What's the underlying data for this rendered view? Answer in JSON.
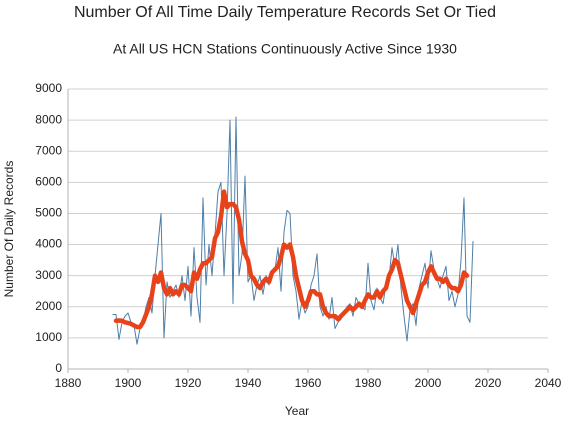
{
  "chart_data": {
    "type": "line",
    "title": "Number Of All Time Daily Temperature Records Set Or Tied",
    "subtitle": "At All US HCN Stations Continuously Active Since 1930",
    "xlabel": "Year",
    "ylabel": "Number Of Daily Records",
    "xlim": [
      1880,
      2040
    ],
    "xticks": [
      1880,
      1900,
      1920,
      1940,
      1960,
      1980,
      2000,
      2020,
      2040
    ],
    "ylim": [
      0,
      9000
    ],
    "yticks": [
      0,
      1000,
      2000,
      3000,
      4000,
      5000,
      6000,
      7000,
      8000,
      9000
    ],
    "grid": true,
    "series": [
      {
        "color": "#4f7fa8",
        "width": 1,
        "x": [
          1895,
          1896,
          1897,
          1898,
          1899,
          1900,
          1901,
          1902,
          1903,
          1904,
          1905,
          1906,
          1907,
          1908,
          1909,
          1910,
          1911,
          1912,
          1913,
          1914,
          1915,
          1916,
          1917,
          1918,
          1919,
          1920,
          1921,
          1922,
          1923,
          1924,
          1925,
          1926,
          1927,
          1928,
          1929,
          1930,
          1931,
          1932,
          1933,
          1934,
          1935,
          1936,
          1937,
          1938,
          1939,
          1940,
          1941,
          1942,
          1943,
          1944,
          1945,
          1946,
          1947,
          1948,
          1949,
          1950,
          1951,
          1952,
          1953,
          1954,
          1955,
          1956,
          1957,
          1958,
          1959,
          1960,
          1961,
          1962,
          1963,
          1964,
          1965,
          1966,
          1967,
          1968,
          1969,
          1970,
          1971,
          1972,
          1973,
          1974,
          1975,
          1976,
          1977,
          1978,
          1979,
          1980,
          1981,
          1982,
          1983,
          1984,
          1985,
          1986,
          1987,
          1988,
          1989,
          1990,
          1991,
          1992,
          1993,
          1994,
          1995,
          1996,
          1997,
          1998,
          1999,
          2000,
          2001,
          2002,
          2003,
          2004,
          2005,
          2006,
          2007,
          2008,
          2009,
          2010,
          2011,
          2012,
          2013,
          2014,
          2015
        ],
        "values": [
          1750,
          1750,
          950,
          1500,
          1700,
          1800,
          1500,
          1400,
          800,
          1300,
          1500,
          2000,
          2300,
          1800,
          3000,
          4000,
          5000,
          1000,
          2800,
          2300,
          2500,
          2700,
          2300,
          3000,
          2200,
          3300,
          1700,
          3900,
          2300,
          1500,
          5500,
          2700,
          4000,
          3000,
          4300,
          5700,
          6000,
          3000,
          5000,
          8000,
          2100,
          8100,
          3000,
          3700,
          6200,
          2800,
          3000,
          2200,
          2700,
          3000,
          2400,
          3000,
          2700,
          3100,
          3200,
          3900,
          2500,
          4400,
          5100,
          5000,
          3000,
          2500,
          1600,
          2200,
          1800,
          2000,
          2700,
          3000,
          3700,
          2000,
          1700,
          2000,
          1600,
          2300,
          1300,
          1500,
          1600,
          1800,
          2000,
          2100,
          1700,
          2300,
          2100,
          2000,
          1900,
          3400,
          2200,
          1900,
          2600,
          2300,
          2100,
          2700,
          2900,
          3900,
          3300,
          4000,
          2600,
          1700,
          900,
          1900,
          2100,
          1400,
          2600,
          3000,
          3400,
          2600,
          3800,
          3200,
          2900,
          2600,
          3000,
          3300,
          2200,
          2500,
          2000,
          2400,
          3500,
          5500,
          1700,
          1500,
          4100
        ]
      },
      {
        "color": "#e8421a",
        "width": 4.5,
        "x": [
          1896,
          1897,
          1898,
          1899,
          1900,
          1901,
          1902,
          1903,
          1904,
          1905,
          1906,
          1907,
          1908,
          1909,
          1910,
          1911,
          1912,
          1913,
          1914,
          1915,
          1916,
          1917,
          1918,
          1919,
          1920,
          1921,
          1922,
          1923,
          1924,
          1925,
          1926,
          1927,
          1928,
          1929,
          1930,
          1931,
          1932,
          1933,
          1934,
          1935,
          1936,
          1937,
          1938,
          1939,
          1940,
          1941,
          1942,
          1943,
          1944,
          1945,
          1946,
          1947,
          1948,
          1949,
          1950,
          1951,
          1952,
          1953,
          1954,
          1955,
          1956,
          1957,
          1958,
          1959,
          1960,
          1961,
          1962,
          1963,
          1964,
          1965,
          1966,
          1967,
          1968,
          1969,
          1970,
          1971,
          1972,
          1973,
          1974,
          1975,
          1976,
          1977,
          1978,
          1979,
          1980,
          1981,
          1982,
          1983,
          1984,
          1985,
          1986,
          1987,
          1988,
          1989,
          1990,
          1991,
          1992,
          1993,
          1994,
          1995,
          1996,
          1997,
          1998,
          1999,
          2000,
          2001,
          2002,
          2003,
          2004,
          2005,
          2006,
          2007,
          2008,
          2009,
          2010,
          2011,
          2012,
          2013
        ],
        "values": [
          1550,
          1560,
          1550,
          1500,
          1480,
          1450,
          1400,
          1350,
          1350,
          1500,
          1750,
          2000,
          2400,
          3000,
          2800,
          3100,
          2600,
          2400,
          2600,
          2400,
          2500,
          2400,
          2700,
          2700,
          2600,
          2500,
          3100,
          2900,
          3200,
          3400,
          3400,
          3500,
          3600,
          4200,
          4400,
          4900,
          5700,
          5200,
          5300,
          5300,
          5200,
          4800,
          4100,
          3700,
          3500,
          3000,
          2900,
          2700,
          2600,
          2800,
          2900,
          2800,
          3100,
          3200,
          3300,
          3600,
          4000,
          3900,
          4000,
          3600,
          3000,
          2600,
          2200,
          2000,
          2200,
          2500,
          2500,
          2400,
          2400,
          2000,
          1800,
          1700,
          1700,
          1700,
          1600,
          1700,
          1800,
          1900,
          2000,
          1900,
          2000,
          2100,
          2000,
          2200,
          2400,
          2300,
          2300,
          2500,
          2300,
          2500,
          2600,
          3000,
          3200,
          3500,
          3400,
          3000,
          2600,
          2200,
          2000,
          1800,
          2100,
          2400,
          2700,
          2800,
          3100,
          3300,
          3100,
          2900,
          2900,
          2800,
          2900,
          2700,
          2600,
          2600,
          2500,
          2700,
          3100,
          3000
        ]
      }
    ]
  }
}
